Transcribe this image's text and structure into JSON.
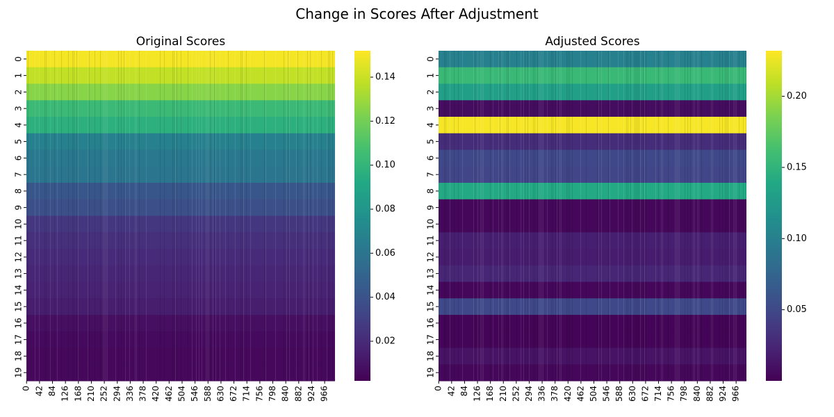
{
  "figure": {
    "suptitle": "Change in Scores After Adjustment"
  },
  "chart_data": [
    {
      "type": "heatmap",
      "title": "Original Scores",
      "colormap": "viridis",
      "n_rows": 20,
      "n_cols": 1000,
      "row_labels": [
        "0",
        "1",
        "2",
        "3",
        "4",
        "5",
        "6",
        "7",
        "8",
        "9",
        "10",
        "11",
        "12",
        "13",
        "14",
        "15",
        "16",
        "17",
        "18",
        "19"
      ],
      "col_tick_labels": [
        "0",
        "42",
        "84",
        "126",
        "168",
        "210",
        "252",
        "294",
        "336",
        "378",
        "420",
        "462",
        "504",
        "546",
        "588",
        "630",
        "672",
        "714",
        "756",
        "798",
        "840",
        "882",
        "924",
        "966"
      ],
      "row_values": [
        0.15,
        0.138,
        0.125,
        0.103,
        0.097,
        0.067,
        0.062,
        0.06,
        0.042,
        0.038,
        0.026,
        0.022,
        0.02,
        0.018,
        0.016,
        0.014,
        0.008,
        0.006,
        0.005,
        0.005
      ],
      "colorbar": {
        "min": 0.002,
        "max": 0.152,
        "ticks": [
          0.02,
          0.04,
          0.06,
          0.08,
          0.1,
          0.12,
          0.14
        ],
        "tick_labels": [
          "0.02",
          "0.04",
          "0.06",
          "0.08",
          "0.10",
          "0.12",
          "0.14"
        ]
      }
    },
    {
      "type": "heatmap",
      "title": "Adjusted Scores",
      "colormap": "viridis",
      "n_rows": 20,
      "n_cols": 1000,
      "row_labels": [
        "0",
        "1",
        "2",
        "3",
        "4",
        "5",
        "6",
        "7",
        "8",
        "9",
        "10",
        "11",
        "12",
        "13",
        "14",
        "15",
        "16",
        "17",
        "18",
        "19"
      ],
      "col_tick_labels": [
        "0",
        "42",
        "84",
        "126",
        "168",
        "210",
        "252",
        "294",
        "336",
        "378",
        "420",
        "462",
        "504",
        "546",
        "588",
        "630",
        "672",
        "714",
        "756",
        "798",
        "840",
        "882",
        "924",
        "966"
      ],
      "row_values": [
        0.1,
        0.155,
        0.13,
        0.008,
        0.23,
        0.03,
        0.05,
        0.048,
        0.14,
        0.004,
        0.004,
        0.02,
        0.018,
        0.025,
        0.004,
        0.05,
        0.002,
        0.002,
        0.012,
        0.004
      ],
      "colorbar": {
        "min": 0.0,
        "max": 0.232,
        "ticks": [
          0.05,
          0.1,
          0.15,
          0.2
        ],
        "tick_labels": [
          "0.05",
          "0.10",
          "0.15",
          "0.20"
        ]
      }
    }
  ]
}
